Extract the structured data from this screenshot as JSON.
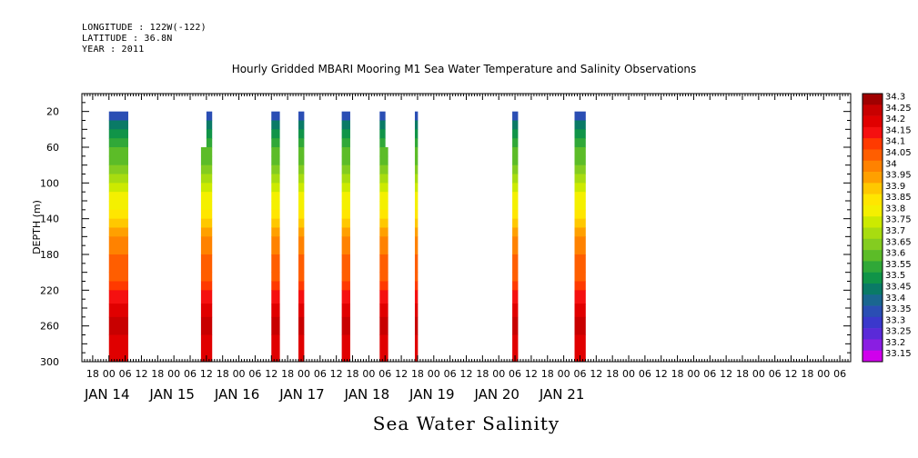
{
  "header": {
    "longitude": "LONGITUDE : 122W(-122)",
    "latitude": "LATITUDE : 36.8N",
    "year": "YEAR : 2011"
  },
  "chart_data": {
    "type": "heatmap",
    "title": "Hourly Gridded MBARI Mooring M1 Sea Water Temperature and Salinity Observations",
    "xlabel": "Sea Water Salinity",
    "ylabel": "DEPTH (m)",
    "x_axis": {
      "unit": "hours since JAN 14 00",
      "range": [
        -10,
        274
      ],
      "hour_tick_labels": [
        "18",
        "00",
        "06",
        "12"
      ],
      "day_labels": [
        {
          "label": "JAN 14",
          "hour": 0
        },
        {
          "label": "JAN 15",
          "hour": 24
        },
        {
          "label": "JAN 16",
          "hour": 48
        },
        {
          "label": "JAN 17",
          "hour": 72
        },
        {
          "label": "JAN 18",
          "hour": 96
        },
        {
          "label": "JAN 19",
          "hour": 120
        },
        {
          "label": "JAN 20",
          "hour": 144
        },
        {
          "label": "JAN 21",
          "hour": 168
        }
      ]
    },
    "y_axis": {
      "range": [
        300,
        0
      ],
      "reversed": true,
      "ticks": [
        20,
        60,
        100,
        140,
        180,
        220,
        260,
        300
      ]
    },
    "colorbar": {
      "levels": [
        "34.3",
        "34.25",
        "34.2",
        "34.15",
        "34.1",
        "34.05",
        "34",
        "33.95",
        "33.9",
        "33.85",
        "33.8",
        "33.75",
        "33.7",
        "33.65",
        "33.6",
        "33.55",
        "33.5",
        "33.45",
        "33.4",
        "33.35",
        "33.3",
        "33.25",
        "33.2",
        "33.15"
      ],
      "colors": [
        "#a00000",
        "#c80000",
        "#e00000",
        "#f51010",
        "#ff3a00",
        "#ff5e00",
        "#ff8200",
        "#ffa000",
        "#ffc800",
        "#ffe600",
        "#f4f000",
        "#ccea00",
        "#a8dc10",
        "#84cc20",
        "#5cbc28",
        "#30a838",
        "#109448",
        "#0a7a66",
        "#1a6690",
        "#2a4eb4",
        "#3a38cc",
        "#5a2ad8",
        "#8a1ee2",
        "#d000ec"
      ]
    },
    "observation_periods": [
      {
        "start_hour": 0,
        "end_hour": 7,
        "top_depth": 20,
        "bottom_depth": 300
      },
      {
        "start_hour": 34,
        "end_hour": 36,
        "top_depth": 60,
        "bottom_depth": 300
      },
      {
        "start_hour": 36,
        "end_hour": 38,
        "top_depth": 20,
        "bottom_depth": 300
      },
      {
        "start_hour": 60,
        "end_hour": 63,
        "top_depth": 20,
        "bottom_depth": 300
      },
      {
        "start_hour": 70,
        "end_hour": 72,
        "top_depth": 20,
        "bottom_depth": 300
      },
      {
        "start_hour": 86,
        "end_hour": 89,
        "top_depth": 20,
        "bottom_depth": 300
      },
      {
        "start_hour": 100,
        "end_hour": 102,
        "top_depth": 20,
        "bottom_depth": 300
      },
      {
        "start_hour": 102,
        "end_hour": 103,
        "top_depth": 60,
        "bottom_depth": 300
      },
      {
        "start_hour": 113,
        "end_hour": 114,
        "top_depth": 20,
        "bottom_depth": 300
      },
      {
        "start_hour": 149,
        "end_hour": 151,
        "top_depth": 20,
        "bottom_depth": 300
      },
      {
        "start_hour": 172,
        "end_hour": 176,
        "top_depth": 20,
        "bottom_depth": 300
      }
    ],
    "salinity_profile": [
      {
        "depth": 20,
        "salinity": 33.37
      },
      {
        "depth": 30,
        "salinity": 33.47
      },
      {
        "depth": 40,
        "salinity": 33.52
      },
      {
        "depth": 50,
        "salinity": 33.56
      },
      {
        "depth": 60,
        "salinity": 33.6
      },
      {
        "depth": 70,
        "salinity": 33.64
      },
      {
        "depth": 80,
        "salinity": 33.68
      },
      {
        "depth": 90,
        "salinity": 33.72
      },
      {
        "depth": 100,
        "salinity": 33.76
      },
      {
        "depth": 110,
        "salinity": 33.8
      },
      {
        "depth": 120,
        "salinity": 33.84
      },
      {
        "depth": 130,
        "salinity": 33.88
      },
      {
        "depth": 140,
        "salinity": 33.93
      },
      {
        "depth": 150,
        "salinity": 33.98
      },
      {
        "depth": 160,
        "salinity": 34.02
      },
      {
        "depth": 180,
        "salinity": 34.06
      },
      {
        "depth": 200,
        "salinity": 34.08
      },
      {
        "depth": 210,
        "salinity": 34.12
      },
      {
        "depth": 220,
        "salinity": 34.16
      },
      {
        "depth": 235,
        "salinity": 34.2
      },
      {
        "depth": 250,
        "salinity": 34.26
      },
      {
        "depth": 270,
        "salinity": 34.21
      },
      {
        "depth": 300,
        "salinity": 34.21
      }
    ]
  }
}
